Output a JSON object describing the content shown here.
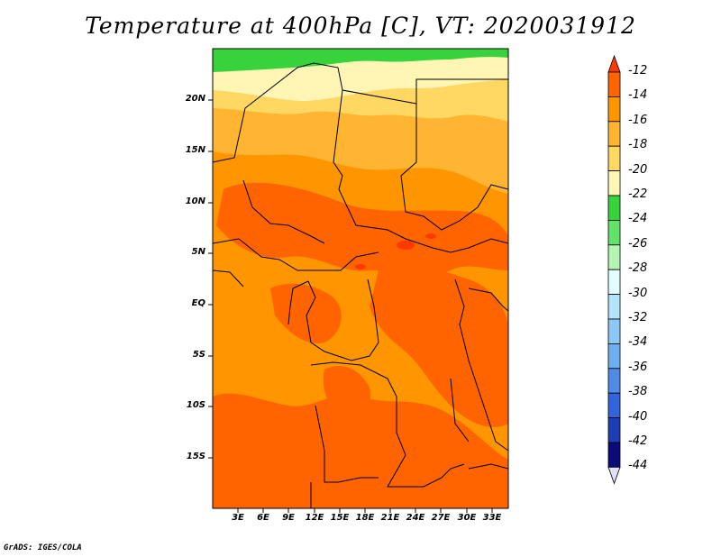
{
  "title": "Temperature at 400hPa [C], VT: 2020031912",
  "footer": "GrADS: IGES/COLA",
  "lat_labels": [
    "20N",
    "15N",
    "10N",
    "5N",
    "EQ",
    "5S",
    "10S",
    "15S"
  ],
  "lon_labels": [
    "3E",
    "6E",
    "9E",
    "12E",
    "15E",
    "18E",
    "21E",
    "24E",
    "27E",
    "30E",
    "33E"
  ],
  "colorbar": {
    "levels": [
      "-12",
      "-14",
      "-16",
      "-18",
      "-20",
      "-22",
      "-24",
      "-26",
      "-28",
      "-30",
      "-32",
      "-34",
      "-36",
      "-38",
      "-40",
      "-42",
      "-44"
    ],
    "colors": [
      "#ff3a00",
      "#ff6400",
      "#ff9600",
      "#ffb432",
      "#ffd864",
      "#fff5b4",
      "#37d23c",
      "#64e169",
      "#b4f5b4",
      "#e1ffff",
      "#b4e6fa",
      "#8cc8f5",
      "#6eaff0",
      "#508ce6",
      "#3264dc",
      "#1e3cb4",
      "#0a0a78",
      "#e1e1f5"
    ],
    "colors_note": "top arrow, 16 boxes, bottom arrow"
  },
  "field_colors": {
    "green_band": "#37d23c",
    "pale_yellow": "#fff5b4",
    "light_yellow": "#ffd864",
    "light_orange": "#ffb432",
    "orange": "#ff9600",
    "dark_orange": "#ff6400",
    "red_orange": "#ff3a00"
  }
}
